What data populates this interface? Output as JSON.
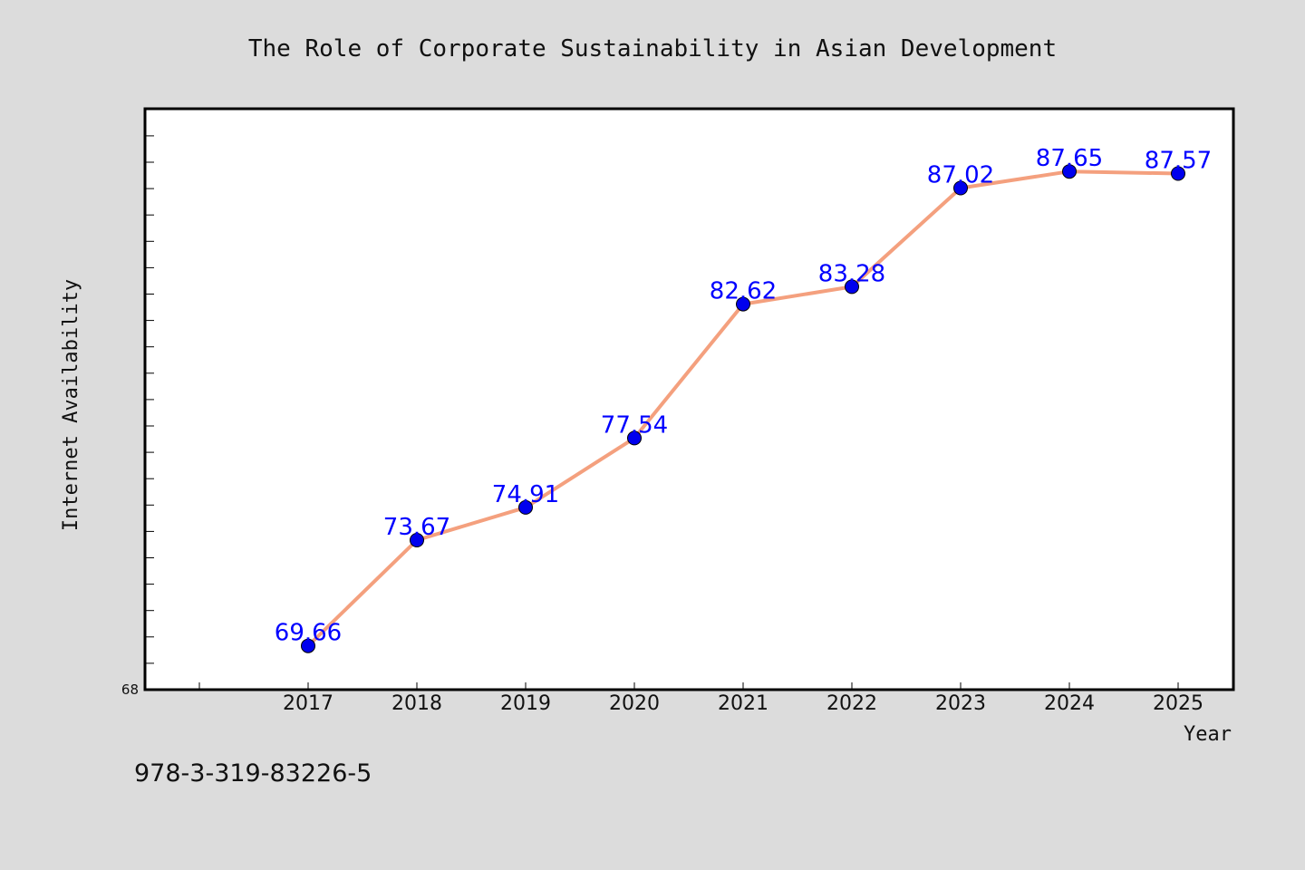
{
  "chart_data": {
    "type": "line",
    "title": "The Role of Corporate Sustainability in Asian Development",
    "xlabel": "Year",
    "ylabel": "Internet Availability",
    "categories": [
      "2017",
      "2018",
      "2019",
      "2020",
      "2021",
      "2022",
      "2023",
      "2024",
      "2025"
    ],
    "series": [
      {
        "values": [
          69.66,
          73.67,
          74.91,
          77.54,
          82.62,
          83.28,
          87.02,
          87.65,
          87.57
        ],
        "data_labels": [
          "69.66",
          "73.67",
          "74.91",
          "77.54",
          "82.62",
          "83.28",
          "87.02",
          "87.65",
          "87.57"
        ]
      }
    ],
    "y_tick_label": "68",
    "ylim": [
      68,
      90
    ],
    "y_minor_tick_step": 1,
    "grid": false,
    "legend": "none",
    "colors": {
      "line": "#f4a07e",
      "marker": "#0000ee",
      "data_label": "#0000ff",
      "plot_background": "#ffffff",
      "page_background": "#dcdcdc"
    }
  },
  "footer": {
    "isbn": "978-3-319-83226-5"
  }
}
